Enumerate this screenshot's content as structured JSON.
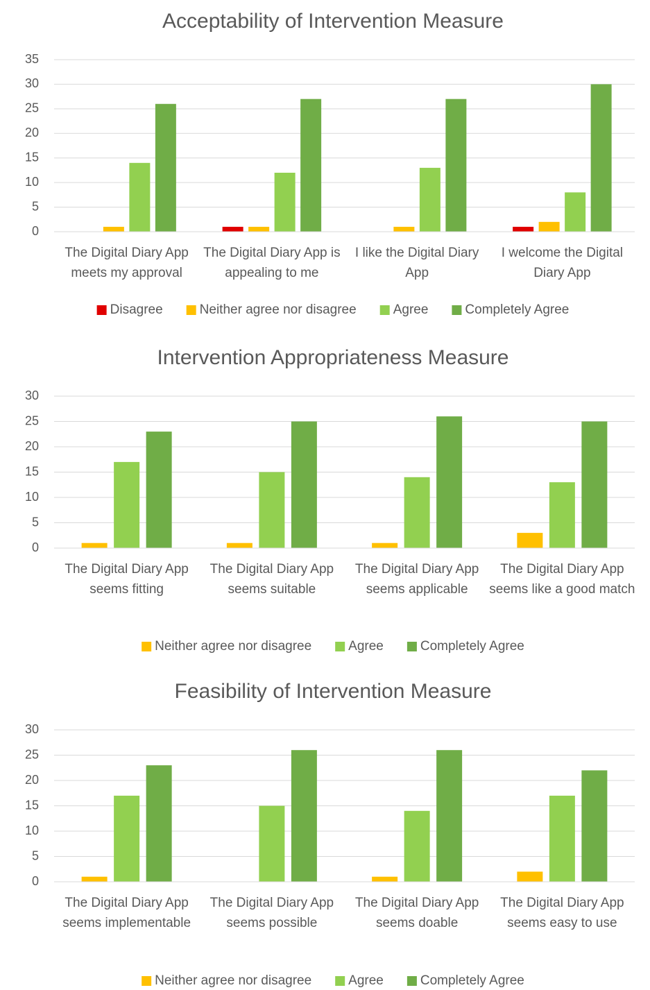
{
  "chart_data": [
    {
      "type": "bar",
      "title": "Acceptability of Intervention Measure",
      "categories": [
        "The Digital Diary App meets my approval",
        "The Digital Diary App is appealing to me",
        "I like the Digital Diary App",
        "I welcome the Digital Diary App"
      ],
      "series": [
        {
          "name": "Disagree",
          "color": "#e00000",
          "values": [
            0,
            1,
            0,
            1
          ]
        },
        {
          "name": "Neither agree nor disagree",
          "color": "#ffc000",
          "values": [
            1,
            1,
            1,
            2
          ]
        },
        {
          "name": "Agree",
          "color": "#92d050",
          "values": [
            14,
            12,
            13,
            8
          ]
        },
        {
          "name": "Completely Agree",
          "color": "#70ad47",
          "values": [
            26,
            27,
            27,
            30
          ]
        }
      ],
      "ylim": [
        0,
        35
      ],
      "yticks": [
        0,
        5,
        10,
        15,
        20,
        25,
        30,
        35
      ],
      "grid": true,
      "legend": "bottom"
    },
    {
      "type": "bar",
      "title": "Intervention Appropriateness Measure",
      "categories": [
        "The Digital Diary App seems fitting",
        "The Digital Diary App seems suitable",
        "The Digital Diary App seems applicable",
        "The Digital Diary App seems like a good match"
      ],
      "series": [
        {
          "name": "Neither agree nor disagree",
          "color": "#ffc000",
          "values": [
            1,
            1,
            1,
            3
          ]
        },
        {
          "name": "Agree",
          "color": "#92d050",
          "values": [
            17,
            15,
            14,
            13
          ]
        },
        {
          "name": "Completely Agree",
          "color": "#70ad47",
          "values": [
            23,
            25,
            26,
            25
          ]
        }
      ],
      "ylim": [
        0,
        30
      ],
      "yticks": [
        0,
        5,
        10,
        15,
        20,
        25,
        30
      ],
      "grid": true,
      "legend": "bottom"
    },
    {
      "type": "bar",
      "title": "Feasibility of Intervention Measure",
      "categories": [
        "The Digital Diary App seems implementable",
        "The Digital Diary App seems possible",
        "The Digital Diary App seems doable",
        "The Digital Diary App seems easy to use"
      ],
      "series": [
        {
          "name": "Neither agree nor disagree",
          "color": "#ffc000",
          "values": [
            1,
            0,
            1,
            2
          ]
        },
        {
          "name": "Agree",
          "color": "#92d050",
          "values": [
            17,
            15,
            14,
            17
          ]
        },
        {
          "name": "Completely Agree",
          "color": "#70ad47",
          "values": [
            23,
            26,
            26,
            22
          ]
        }
      ],
      "ylim": [
        0,
        30
      ],
      "yticks": [
        0,
        5,
        10,
        15,
        20,
        25,
        30
      ],
      "grid": true,
      "legend": "bottom"
    }
  ]
}
